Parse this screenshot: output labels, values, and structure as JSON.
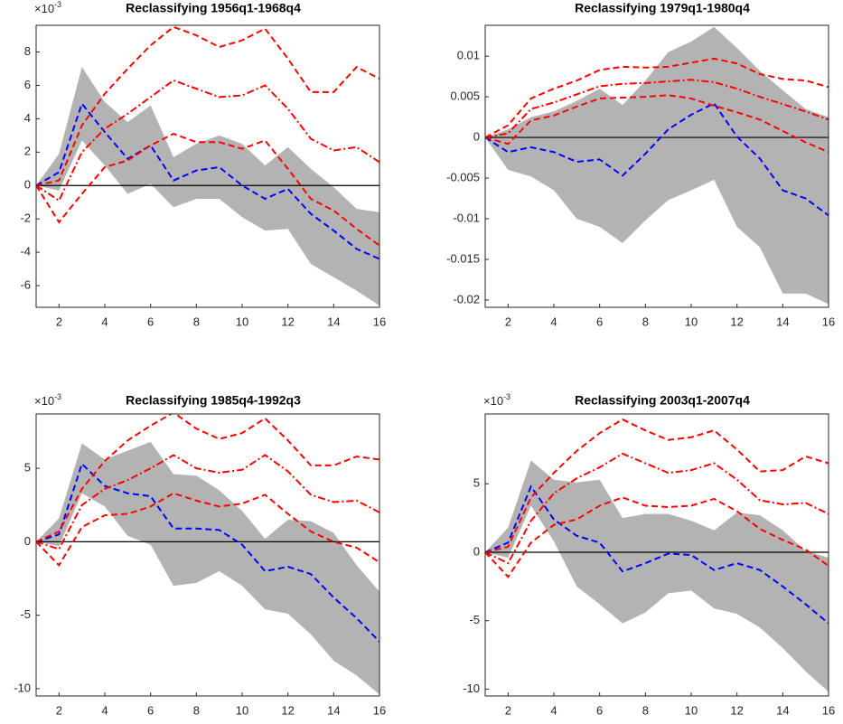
{
  "chart_data": [
    {
      "type": "line",
      "title": "Reclassifying 1956q1-1968q4",
      "y_multiplier": "×10",
      "y_multiplier_exponent": "-3",
      "x": [
        1,
        2,
        3,
        4,
        5,
        6,
        7,
        8,
        9,
        10,
        11,
        12,
        13,
        14,
        15,
        16
      ],
      "xlim": [
        1,
        16
      ],
      "xticks": [
        2,
        4,
        6,
        8,
        10,
        12,
        14,
        16
      ],
      "ylim": [
        -7.3,
        9.6
      ],
      "yticks": [
        -6,
        -4,
        -2,
        0,
        2,
        4,
        6,
        8
      ],
      "reference_line": 0,
      "band": {
        "color": "#b3b3b3",
        "upper": [
          0,
          1.9,
          7.1,
          5,
          3.8,
          4.8,
          1.7,
          2.5,
          3.0,
          2.5,
          1.2,
          2.3,
          1,
          -0.1,
          -1.4,
          -1.6
        ],
        "lower": [
          0,
          -0.3,
          2.7,
          1.2,
          -0.5,
          0.1,
          -1.3,
          -0.8,
          -0.8,
          -1.9,
          -2.7,
          -2.6,
          -4.7,
          -5.5,
          -6.3,
          -7.2
        ]
      },
      "series": [
        {
          "color": "#0000ff",
          "dash": "dashed",
          "values": [
            0,
            0.8,
            4.9,
            3.2,
            1.6,
            2.4,
            0.3,
            0.9,
            1.1,
            0,
            -0.8,
            -0.2,
            -1.7,
            -2.7,
            -3.8,
            -4.4
          ]
        },
        {
          "color": "#ff0000",
          "dash": "dashed",
          "values": [
            0,
            0.3,
            3.6,
            5.5,
            7.0,
            8.4,
            9.5,
            9.0,
            8.3,
            8.7,
            9.4,
            7.6,
            5.6,
            5.6,
            7.1,
            6.4
          ]
        },
        {
          "color": "#ff0000",
          "dash": "dashdot",
          "values": [
            0,
            -0.9,
            2.0,
            3.4,
            4.3,
            5.3,
            6.3,
            5.8,
            5.3,
            5.4,
            6.0,
            4.6,
            2.8,
            2.1,
            2.3,
            1.4
          ]
        },
        {
          "color": "#ff0000",
          "dash": "dashed",
          "values": [
            0,
            -2.2,
            -0.5,
            1.1,
            1.5,
            2.4,
            3.1,
            2.6,
            2.6,
            2.2,
            2.7,
            1.0,
            -0.8,
            -1.5,
            -2.6,
            -3.6
          ]
        }
      ]
    },
    {
      "type": "line",
      "title": "Reclassifying 1979q1-1980q4",
      "x": [
        1,
        2,
        3,
        4,
        5,
        6,
        7,
        8,
        9,
        10,
        11,
        12,
        13,
        14,
        15,
        16
      ],
      "xlim": [
        1,
        16
      ],
      "xticks": [
        2,
        4,
        6,
        8,
        10,
        12,
        14,
        16
      ],
      "ylim": [
        -0.0209,
        0.0138
      ],
      "yticks": [
        -0.02,
        -0.015,
        -0.01,
        -0.005,
        0,
        0.005,
        0.01
      ],
      "reference_line": 0,
      "band": {
        "color": "#b3b3b3",
        "upper": [
          0,
          0.001,
          0.0025,
          0.0032,
          0.0045,
          0.006,
          0.004,
          0.007,
          0.0105,
          0.0118,
          0.0136,
          0.011,
          0.0082,
          0.0058,
          0.0035,
          0.0025
        ],
        "lower": [
          0,
          -0.004,
          -0.0048,
          -0.0065,
          -0.01,
          -0.011,
          -0.013,
          -0.0102,
          -0.0077,
          -0.0065,
          -0.0052,
          -0.011,
          -0.0135,
          -0.0192,
          -0.0192,
          -0.0205
        ]
      },
      "series": [
        {
          "color": "#0000ff",
          "dash": "dashed",
          "values": [
            0,
            -0.0018,
            -0.0012,
            -0.0018,
            -0.003,
            -0.0027,
            -0.0047,
            -0.002,
            0.001,
            0.0028,
            0.0042,
            0.0001,
            -0.0026,
            -0.0065,
            -0.0075,
            -0.0096
          ]
        },
        {
          "color": "#ff0000",
          "dash": "dashed",
          "values": [
            0,
            0.0015,
            0.0048,
            0.006,
            0.007,
            0.0083,
            0.0087,
            0.0086,
            0.0087,
            0.0092,
            0.0097,
            0.0091,
            0.0078,
            0.0072,
            0.007,
            0.0062
          ]
        },
        {
          "color": "#ff0000",
          "dash": "dashdot",
          "values": [
            0,
            0.0005,
            0.0035,
            0.0043,
            0.0053,
            0.0063,
            0.0066,
            0.0067,
            0.0069,
            0.0071,
            0.0068,
            0.006,
            0.005,
            0.0041,
            0.0032,
            0.0022
          ]
        },
        {
          "color": "#ff0000",
          "dash": "dashed",
          "values": [
            0,
            -0.0008,
            0.0021,
            0.0027,
            0.0038,
            0.0048,
            0.0049,
            0.005,
            0.0052,
            0.0048,
            0.0039,
            0.0031,
            0.0022,
            0.0008,
            -0.0006,
            -0.0018
          ]
        }
      ]
    },
    {
      "type": "line",
      "title": "Reclassifying 1985q4-1992q3",
      "y_multiplier": "×10",
      "y_multiplier_exponent": "-3",
      "x": [
        1,
        2,
        3,
        4,
        5,
        6,
        7,
        8,
        9,
        10,
        11,
        12,
        13,
        14,
        15,
        16
      ],
      "xlim": [
        1,
        16
      ],
      "xticks": [
        2,
        4,
        6,
        8,
        10,
        12,
        14,
        16
      ],
      "ylim": [
        -10.5,
        8.7
      ],
      "yticks": [
        -10,
        -5,
        0,
        5
      ],
      "reference_line": 0,
      "band": {
        "color": "#b3b3b3",
        "upper": [
          0,
          1.6,
          6.7,
          5.6,
          6.2,
          6.8,
          4.6,
          4.5,
          3.5,
          2.1,
          0.2,
          1.5,
          1.4,
          0.6,
          -1.6,
          -3.4
        ],
        "lower": [
          0,
          -0.3,
          3.3,
          2.4,
          0.4,
          -0.2,
          -3.0,
          -2.8,
          -2.0,
          -3.0,
          -4.6,
          -4.9,
          -6.3,
          -8.1,
          -9.1,
          -10.4
        ]
      },
      "series": [
        {
          "color": "#0000ff",
          "dash": "dashed",
          "values": [
            0,
            0.5,
            5.3,
            3.8,
            3.3,
            3.1,
            0.9,
            0.9,
            0.8,
            -0.2,
            -2.0,
            -1.7,
            -2.2,
            -3.8,
            -5.2,
            -6.8
          ]
        },
        {
          "color": "#ff0000",
          "dash": "dashed",
          "values": [
            0,
            0.7,
            3.6,
            5.5,
            6.9,
            7.9,
            8.8,
            7.7,
            7.0,
            7.4,
            8.4,
            6.9,
            5.2,
            5.2,
            5.8,
            5.6
          ]
        },
        {
          "color": "#ff0000",
          "dash": "dashdot",
          "values": [
            0,
            -0.5,
            2.5,
            3.6,
            4.2,
            5.0,
            5.9,
            5.0,
            4.7,
            4.9,
            5.9,
            4.8,
            3.2,
            2.7,
            2.8,
            2.0
          ]
        },
        {
          "color": "#ff0000",
          "dash": "dashed",
          "values": [
            0,
            -1.6,
            1.0,
            1.8,
            1.9,
            2.4,
            3.3,
            2.8,
            2.4,
            2.6,
            3.2,
            1.9,
            0.7,
            0.0,
            -0.4,
            -1.4
          ]
        }
      ]
    },
    {
      "type": "line",
      "title": "Reclassifying 2003q1-2007q4",
      "y_multiplier": "×10",
      "y_multiplier_exponent": "-3",
      "x": [
        1,
        2,
        3,
        4,
        5,
        6,
        7,
        8,
        9,
        10,
        11,
        12,
        13,
        14,
        15,
        16
      ],
      "xlim": [
        1,
        16
      ],
      "xticks": [
        2,
        4,
        6,
        8,
        10,
        12,
        14,
        16
      ],
      "ylim": [
        -10.5,
        10.1
      ],
      "yticks": [
        -10,
        -5,
        0,
        5
      ],
      "reference_line": 0,
      "band": {
        "color": "#b3b3b3",
        "upper": [
          0,
          1.8,
          6.7,
          5.3,
          5.1,
          5.3,
          2.5,
          2.8,
          2.8,
          2.3,
          1.6,
          2.9,
          2.7,
          1.6,
          0.1,
          -0.4
        ],
        "lower": [
          0,
          -0.4,
          3.4,
          0.8,
          -2.5,
          -3.8,
          -5.2,
          -4.4,
          -3.0,
          -2.8,
          -4.1,
          -4.5,
          -5.5,
          -7.0,
          -8.7,
          -10.2
        ]
      },
      "series": [
        {
          "color": "#0000ff",
          "dash": "dashed",
          "values": [
            0,
            0.7,
            4.8,
            2.4,
            1.2,
            0.7,
            -1.4,
            -0.8,
            -0.1,
            -0.2,
            -1.3,
            -0.8,
            -1.3,
            -2.5,
            -3.8,
            -5.2
          ]
        },
        {
          "color": "#ff0000",
          "dash": "dashed",
          "values": [
            0,
            0.4,
            4.0,
            5.8,
            7.4,
            8.7,
            9.7,
            8.9,
            8.2,
            8.4,
            8.9,
            7.5,
            5.9,
            6.0,
            7.0,
            6.5
          ]
        },
        {
          "color": "#ff0000",
          "dash": "dashdot",
          "values": [
            0,
            -0.8,
            2.3,
            4.3,
            5.4,
            6.2,
            7.2,
            6.5,
            5.8,
            6.0,
            6.5,
            5.3,
            3.8,
            3.5,
            3.6,
            2.8
          ]
        },
        {
          "color": "#ff0000",
          "dash": "dashed",
          "values": [
            0,
            -1.8,
            0.7,
            2.0,
            2.4,
            3.4,
            4.0,
            3.4,
            3.3,
            3.4,
            3.9,
            3.0,
            1.7,
            0.9,
            0.2,
            -1.0
          ]
        }
      ]
    }
  ]
}
